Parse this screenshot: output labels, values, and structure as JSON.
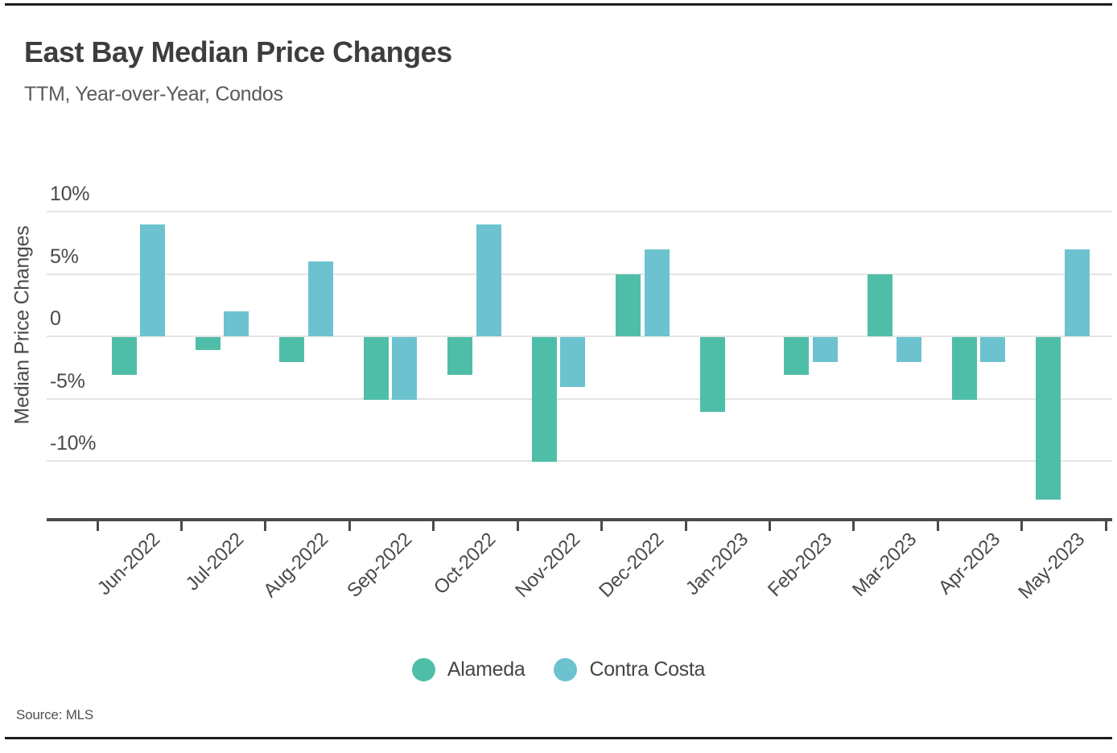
{
  "page": {
    "title": "East Bay Median Price Changes",
    "subtitle": "TTM, Year-over-Year, Condos",
    "source": "Source: MLS"
  },
  "chart_data": {
    "type": "bar",
    "title": "East Bay Median Price Changes",
    "subtitle": "TTM, Year-over-Year, Condos",
    "xlabel": "",
    "ylabel": "Median Price Changes",
    "y_unit": "%",
    "ylim": [
      -14.6,
      12.5
    ],
    "grid": "horizontal",
    "legend_position": "bottom",
    "categories": [
      "Jun-2022",
      "Jul-2022",
      "Aug-2022",
      "Sep-2022",
      "Oct-2022",
      "Nov-2022",
      "Dec-2022",
      "Jan-2023",
      "Feb-2023",
      "Mar-2023",
      "Apr-2023",
      "May-2023"
    ],
    "series": [
      {
        "name": "Alameda",
        "color": "#4FBEA8",
        "values": [
          -3,
          -1,
          -2,
          -5,
          -3,
          -10,
          5,
          -6,
          -3,
          5,
          -5,
          -13
        ]
      },
      {
        "name": "Contra Costa",
        "color": "#6CC3CF",
        "values": [
          9,
          2,
          6,
          -5,
          9,
          -4,
          7,
          0,
          -2,
          -2,
          -2,
          7
        ]
      }
    ],
    "y_ticks": [
      {
        "value": 10,
        "label": "10%"
      },
      {
        "value": 5,
        "label": "5%"
      },
      {
        "value": 0,
        "label": "0"
      },
      {
        "value": -5,
        "label": "-5%"
      },
      {
        "value": -10,
        "label": "-10%"
      }
    ]
  },
  "legend": {
    "items": [
      {
        "label": "Alameda",
        "color": "#4FBEA8"
      },
      {
        "label": "Contra Costa",
        "color": "#6CC3CF"
      }
    ]
  },
  "colors": {
    "alameda": "#4FBEA8",
    "contra_costa": "#6CC3CF",
    "axis": "#4a4a4a",
    "gridline": "#e4e4e4",
    "title_text": "#3d3d3d",
    "rule": "#1c1c1c"
  }
}
